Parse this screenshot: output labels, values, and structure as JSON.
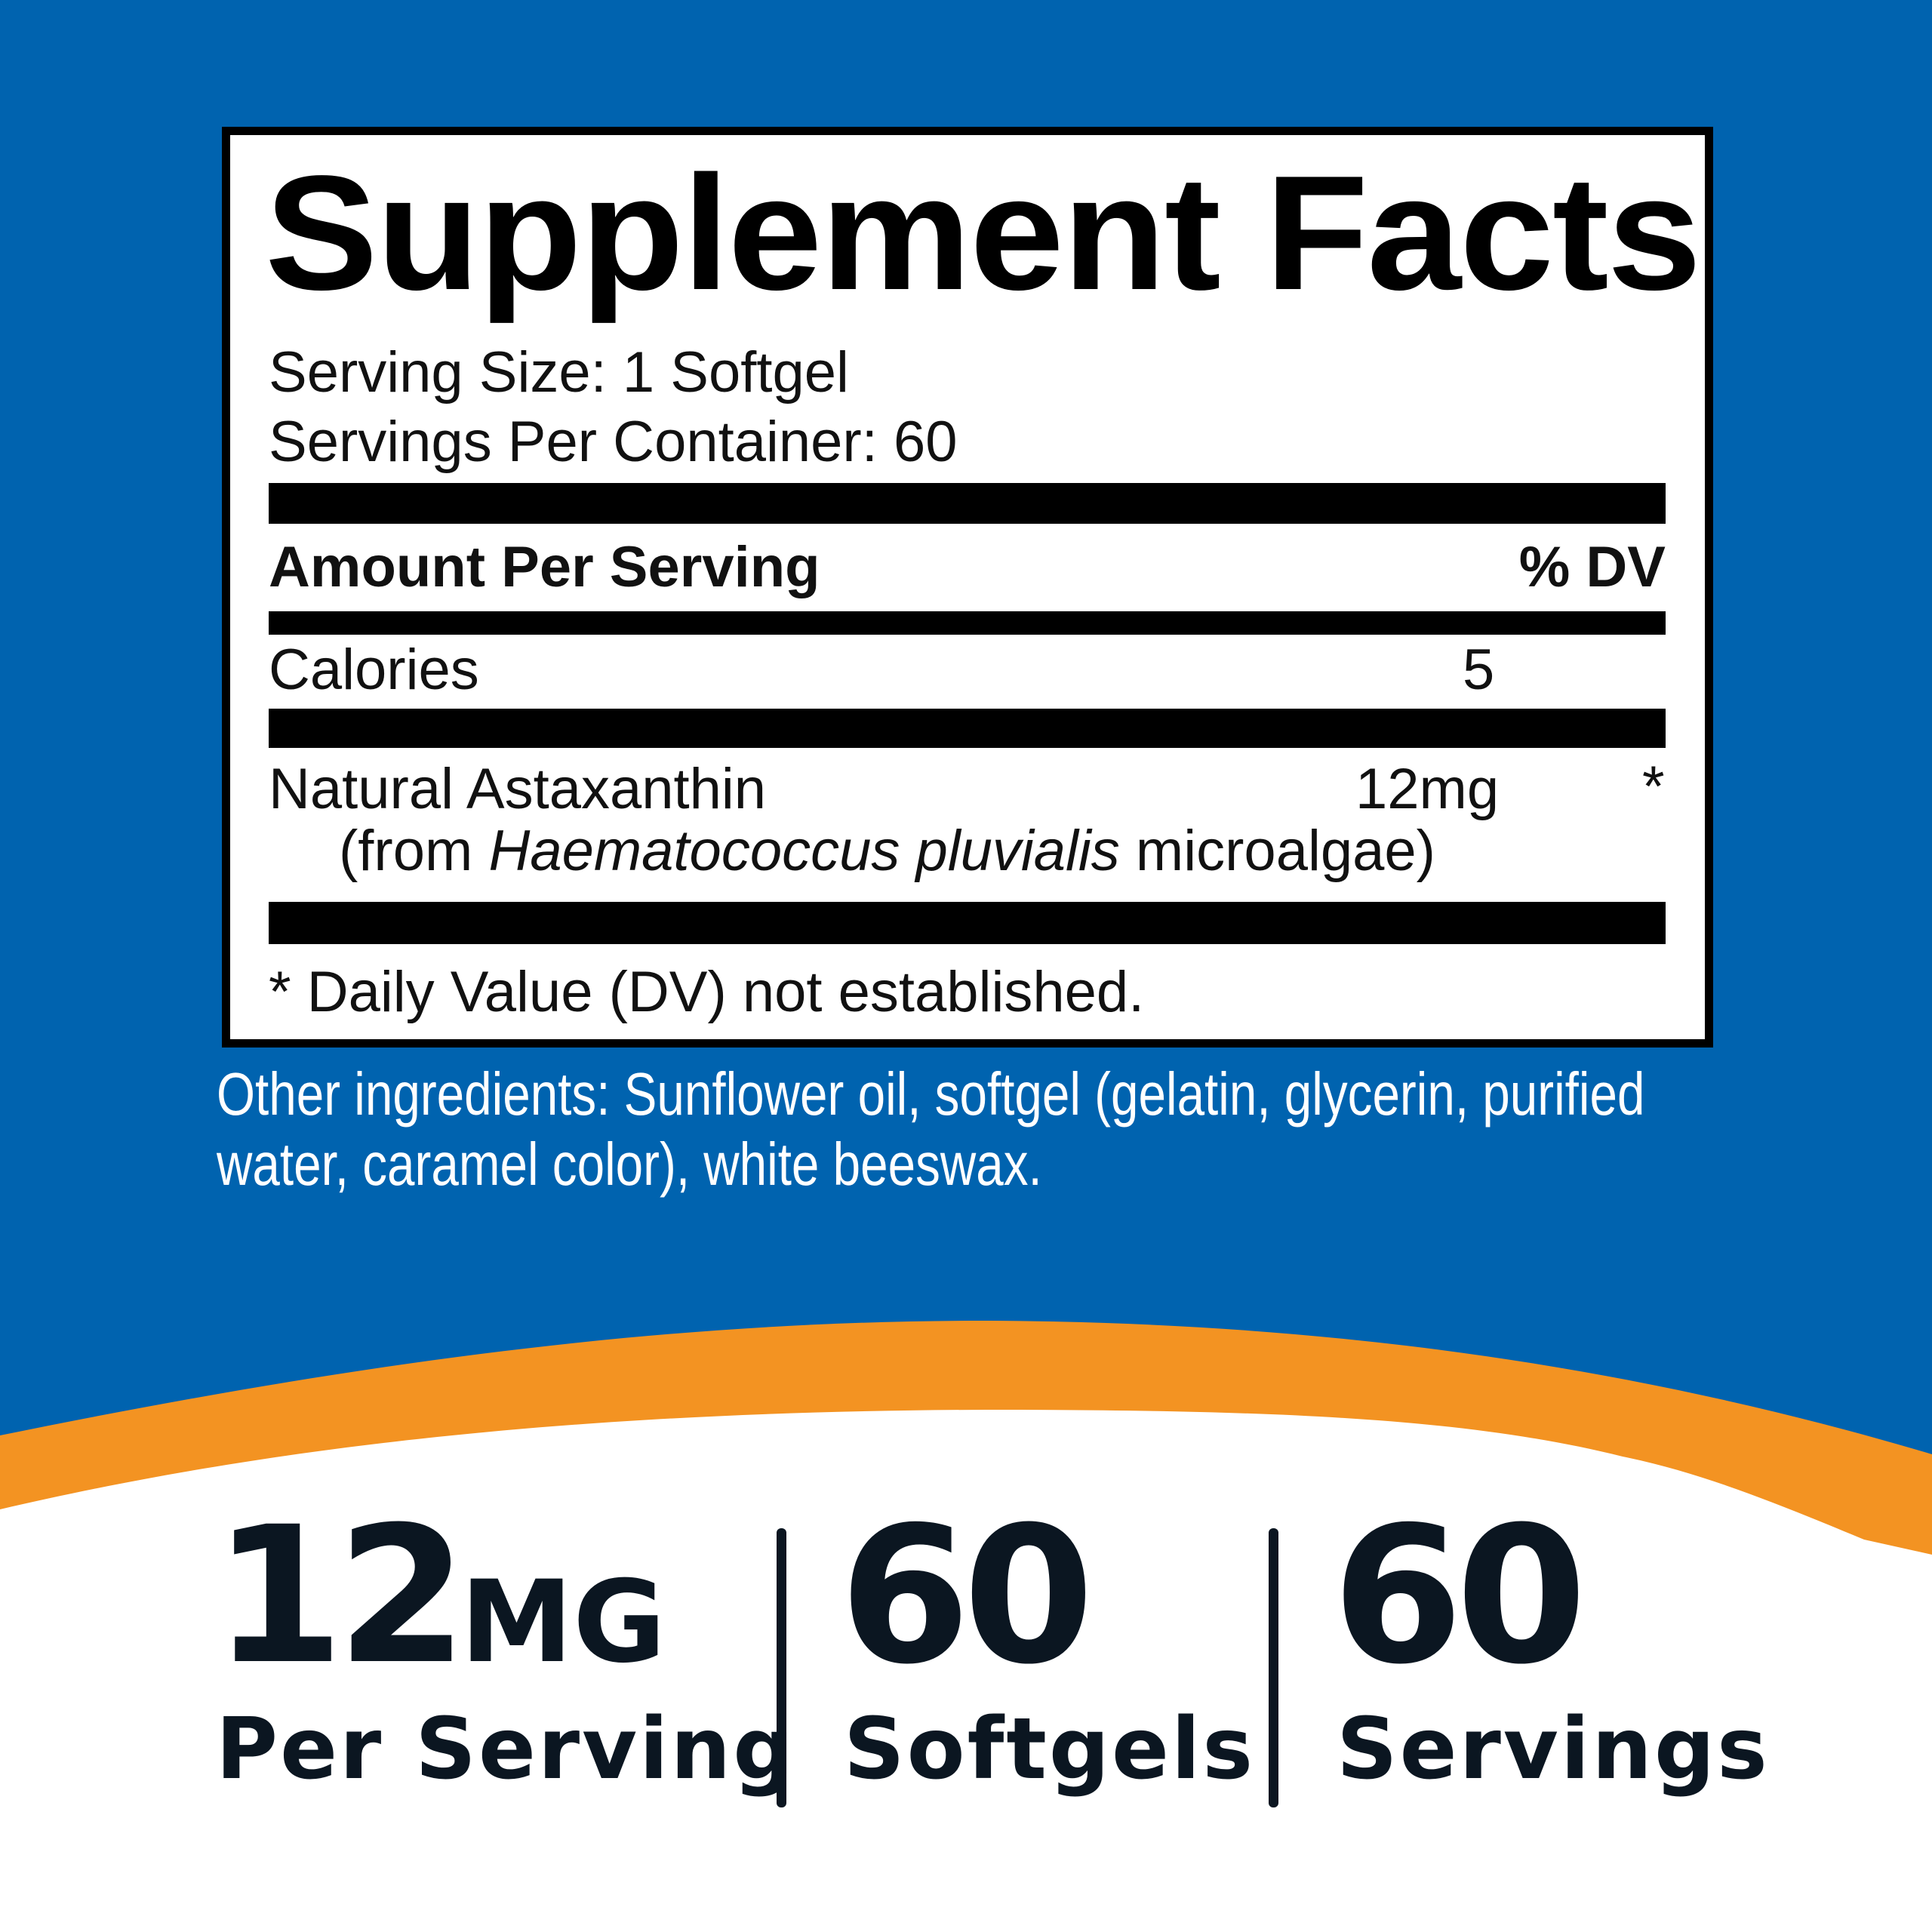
{
  "colors": {
    "background_blue": "#0063AF",
    "accent_orange": "#F39322",
    "text_dark": "#0B1621"
  },
  "facts": {
    "title": "Supplement Facts",
    "serving_size": "Serving Size: 1 Softgel",
    "servings_per_container": "Servings Per Container: 60",
    "amount_header": "Amount Per Serving",
    "dv_header": "% DV",
    "calories_label": "Calories",
    "calories_value": "5",
    "ingredient": {
      "name": "Natural Astaxanthin",
      "amount": "12mg",
      "dv": "*",
      "source_prefix": "(from ",
      "source_species": "Haematococcus pluvialis",
      "source_suffix": " microalgae)"
    },
    "footnote": "* Daily Value (DV) not established."
  },
  "other_ingredients": {
    "line1": "Other ingredients: Sunflower oil, softgel (gelatin, glycerin, purified",
    "line2": "water, caramel color), white beeswax."
  },
  "stats": [
    {
      "value": "12",
      "unit": "MG",
      "label": "Per Serving"
    },
    {
      "value": "60",
      "label": "Softgels"
    },
    {
      "value": "60",
      "label": "Servings"
    }
  ]
}
